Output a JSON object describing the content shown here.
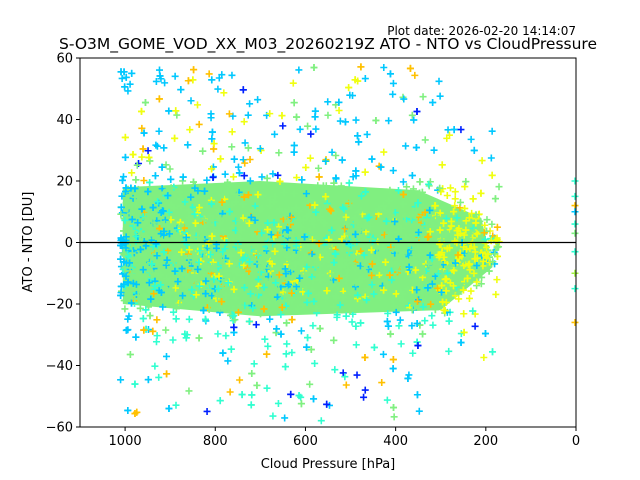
{
  "plot_date": "Plot date: 2026-02-20 14:14:07",
  "chart_data": {
    "type": "scatter",
    "title": "S-O3M_GOME_VOD_XX_M03_20260219Z ATO - NTO vs CloudPressure",
    "xlabel": "Cloud Pressure [hPa]",
    "ylabel": "ATO - NTO [DU]",
    "xlim": [
      1100,
      0
    ],
    "ylim": [
      -60,
      60
    ],
    "x_inverted": true,
    "xticks": [
      "1000",
      "800",
      "600",
      "400",
      "200",
      "0"
    ],
    "xtick_values": [
      1000,
      800,
      600,
      400,
      200,
      0
    ],
    "yticks": [
      "60",
      "40",
      "20",
      "0",
      "−20",
      "−40",
      "−60"
    ],
    "ytick_values": [
      60,
      40,
      20,
      0,
      -20,
      -40,
      -60
    ],
    "reference_line_y": 0,
    "marker": "+",
    "colormap": "jet",
    "colors": {
      "dominant": "#80f080",
      "cyan": "#00c8ff",
      "aqua": "#30ffd0",
      "yellow": "#f0ff10",
      "orange": "#ffc000",
      "blue": "#0020ff",
      "line": "#000000"
    },
    "density_summary": {
      "core_x_range": [
        1005,
        200
      ],
      "core_y_range": [
        -20,
        15
      ],
      "spread_x_range": [
        1010,
        150
      ],
      "spread_y_range": [
        -60,
        60
      ],
      "edge_points_x": 0
    }
  }
}
